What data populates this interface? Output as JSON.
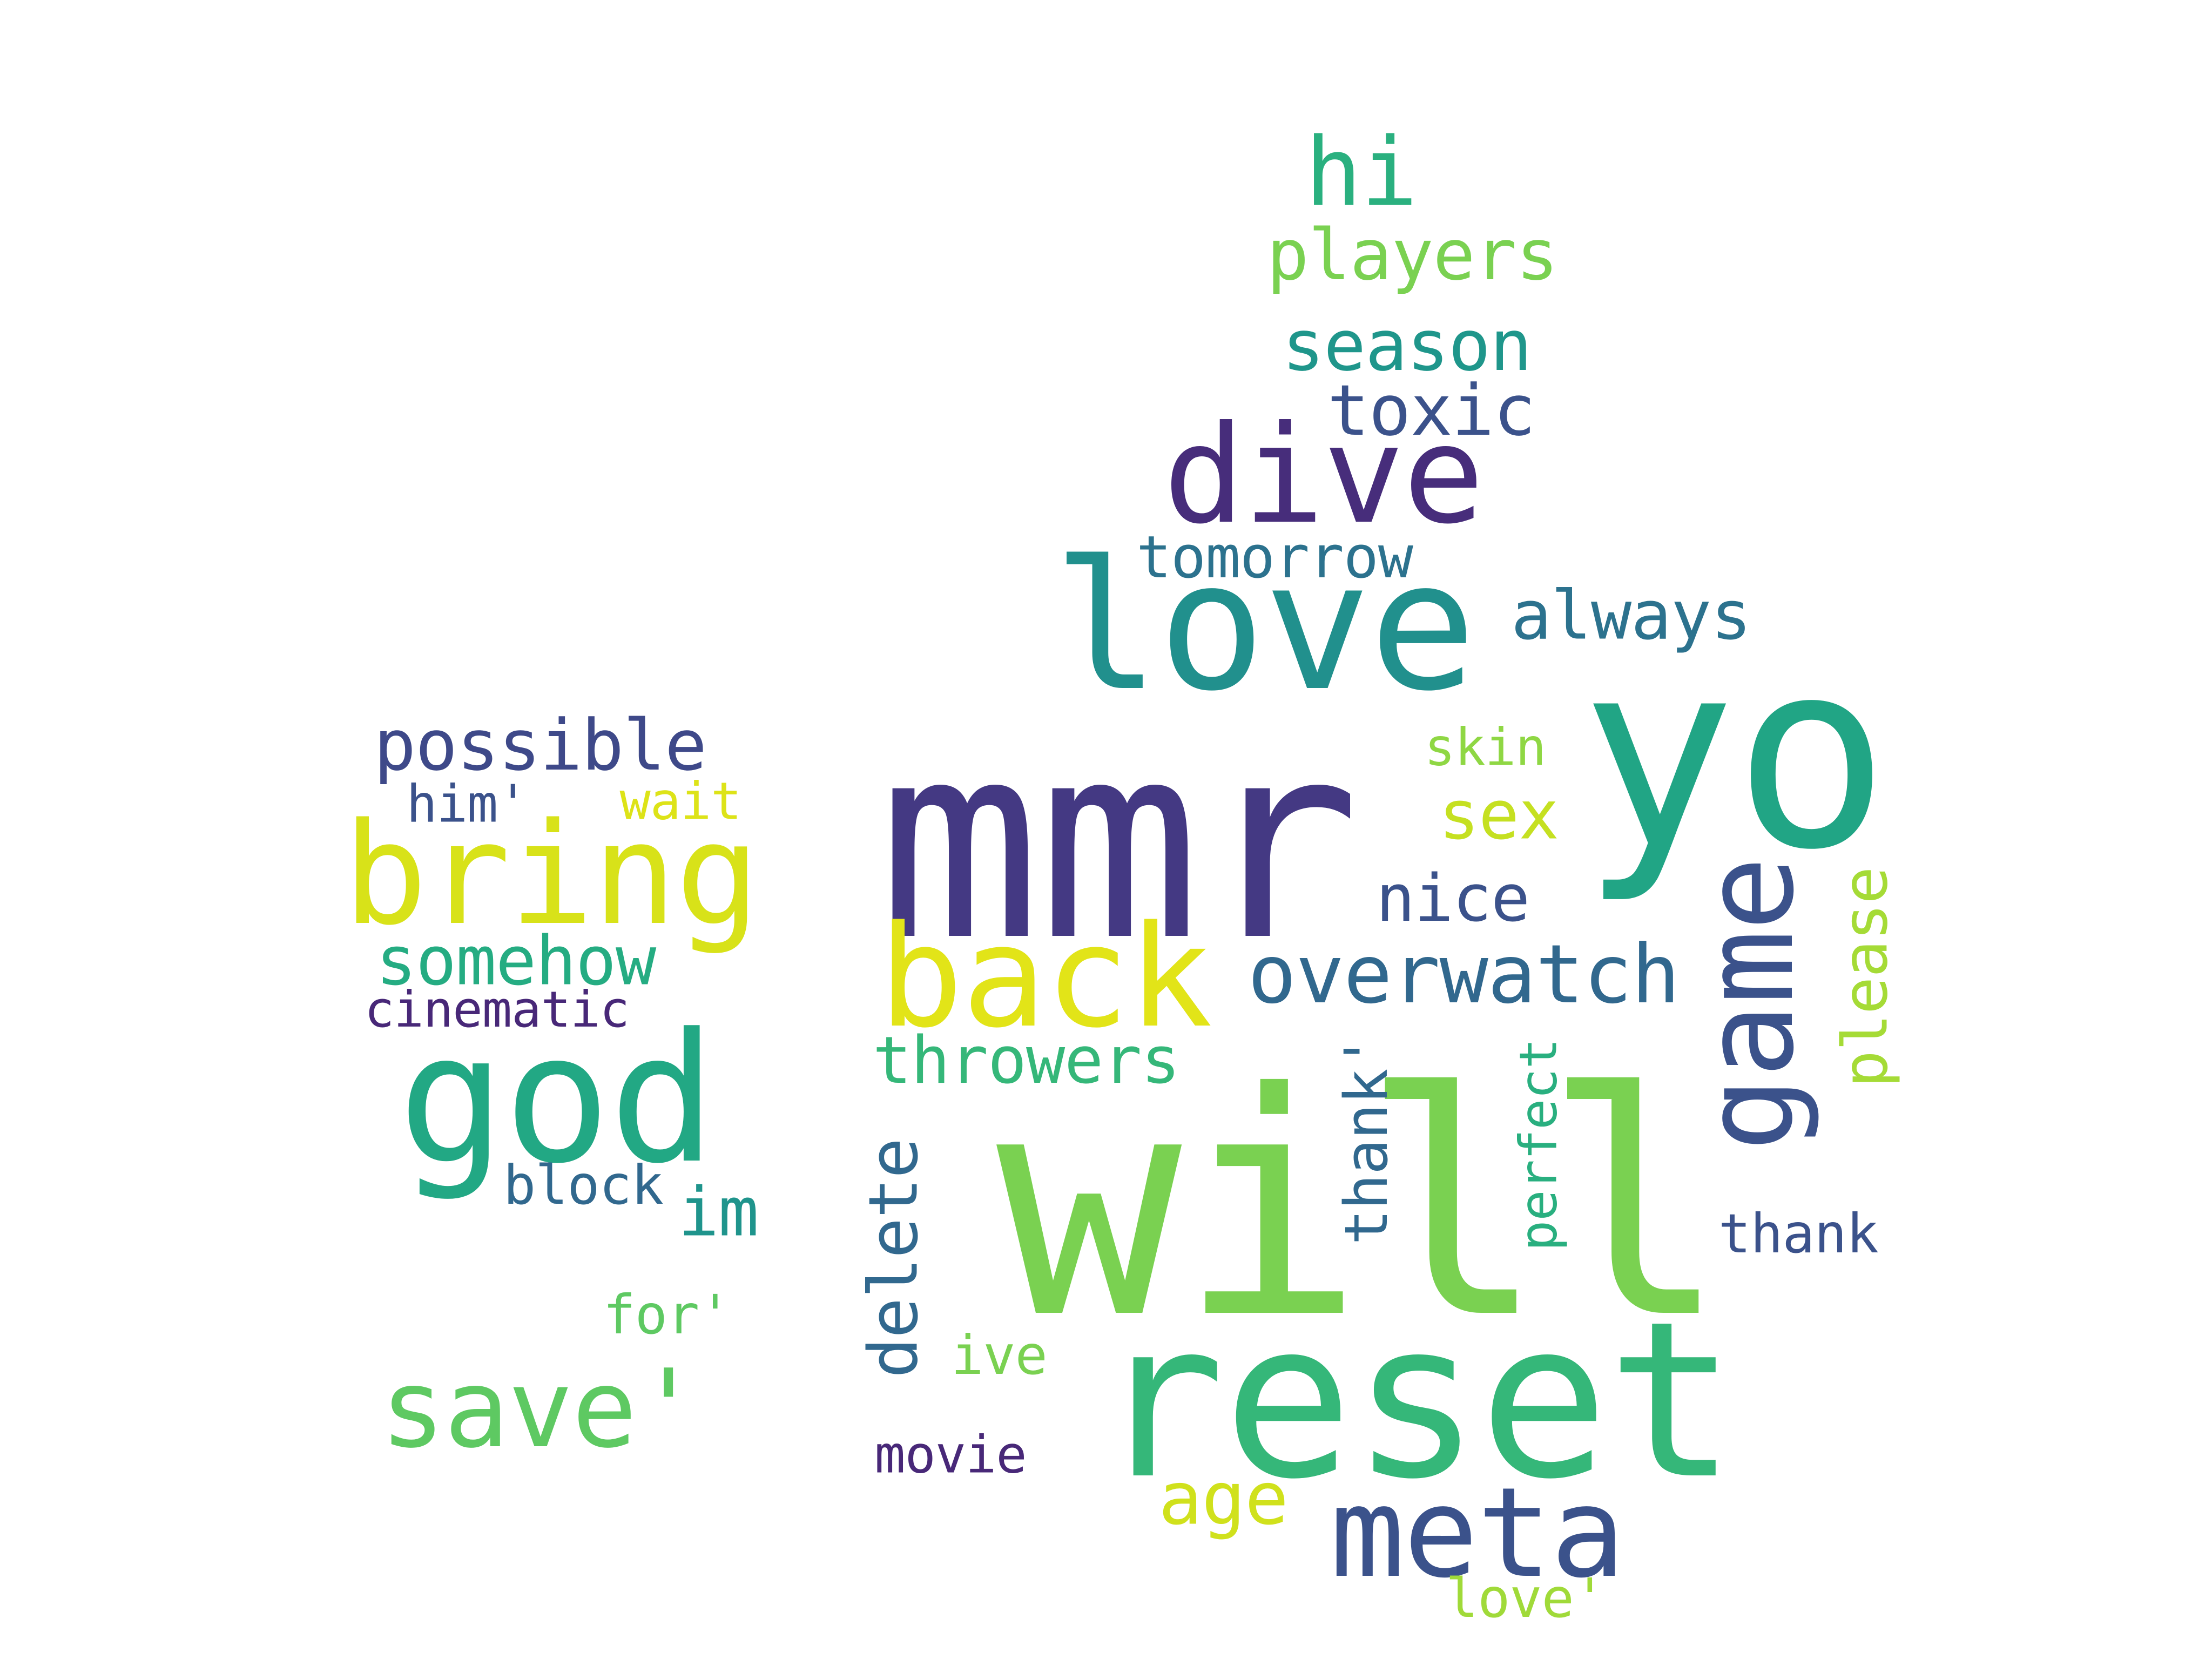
{
  "words": [
    {
      "text": "mmr",
      "color": "#443983"
    },
    {
      "text": "yo",
      "color": "#21a585"
    },
    {
      "text": "love",
      "color": "#21908d"
    },
    {
      "text": "dive",
      "color": "#472d7b"
    },
    {
      "text": "hi",
      "color": "#2ab07f"
    },
    {
      "text": "players",
      "color": "#7ad151"
    },
    {
      "text": "season",
      "color": "#1f968b"
    },
    {
      "text": "toxic",
      "color": "#3b528b"
    },
    {
      "text": "tomorrow",
      "color": "#2c728e"
    },
    {
      "text": "always",
      "color": "#2c728e"
    },
    {
      "text": "possible",
      "color": "#3e4989"
    },
    {
      "text": "him'",
      "color": "#3b528b"
    },
    {
      "text": "wait",
      "color": "#dde318"
    },
    {
      "text": "bring",
      "color": "#d8e219"
    },
    {
      "text": "skin",
      "color": "#8fd744"
    },
    {
      "text": "sex",
      "color": "#c5e021"
    },
    {
      "text": "nice",
      "color": "#3b528b"
    },
    {
      "text": "back",
      "color": "#e2e418"
    },
    {
      "text": "overwatch",
      "color": "#31688e"
    },
    {
      "text": "somehow",
      "color": "#25ac82"
    },
    {
      "text": "cinematic",
      "color": "#482878"
    },
    {
      "text": "god",
      "color": "#22a884"
    },
    {
      "text": "throwers",
      "color": "#35b779"
    },
    {
      "text": "will",
      "color": "#7ad151"
    },
    {
      "text": "game",
      "color": "#3b528b"
    },
    {
      "text": "please",
      "color": "#a5db36"
    },
    {
      "text": "thank'",
      "color": "#31688e"
    },
    {
      "text": "perfect",
      "color": "#29af7f"
    },
    {
      "text": "delete",
      "color": "#31688e"
    },
    {
      "text": "block",
      "color": "#31688e"
    },
    {
      "text": "im",
      "color": "#1f948c"
    },
    {
      "text": "thank",
      "color": "#3b528b"
    },
    {
      "text": "for'",
      "color": "#5ec962"
    },
    {
      "text": "ive",
      "color": "#7ad151"
    },
    {
      "text": "reset",
      "color": "#35b779"
    },
    {
      "text": "save'",
      "color": "#5ec962"
    },
    {
      "text": "movie",
      "color": "#482878"
    },
    {
      "text": "age",
      "color": "#d0e11c"
    },
    {
      "text": "meta",
      "color": "#3b528b"
    },
    {
      "text": "love'",
      "color": "#a0da39"
    }
  ]
}
